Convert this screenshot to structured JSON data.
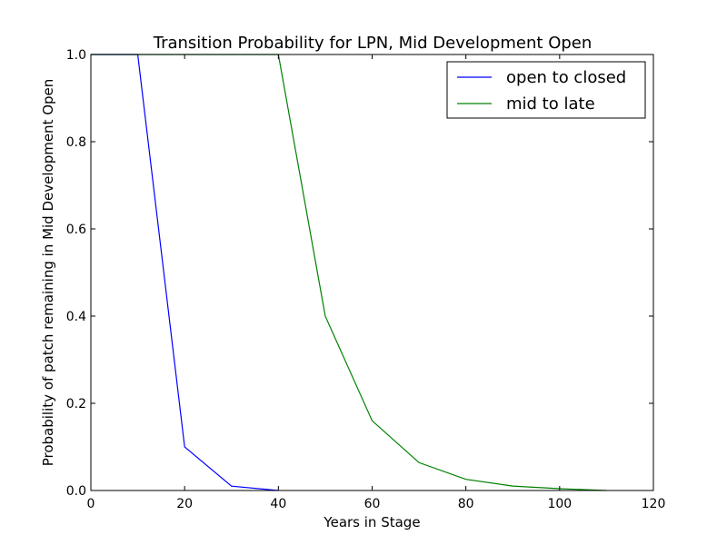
{
  "chart_data": {
    "type": "line",
    "title": "Transition Probability for LPN, Mid Development Open",
    "xlabel": "Years in Stage",
    "ylabel": "Probability of patch remaining in Mid Development Open",
    "xlim": [
      0,
      120
    ],
    "ylim": [
      0.0,
      1.0
    ],
    "xticks": [
      0,
      20,
      40,
      60,
      80,
      100,
      120
    ],
    "yticks": [
      0.0,
      0.2,
      0.4,
      0.6,
      0.8,
      1.0
    ],
    "xtick_labels": [
      "0",
      "20",
      "40",
      "60",
      "80",
      "100",
      "120"
    ],
    "ytick_labels": [
      "0.0",
      "0.2",
      "0.4",
      "0.6",
      "0.8",
      "1.0"
    ],
    "grid": false,
    "legend_position": "top-right",
    "series": [
      {
        "name": "open to closed",
        "color": "#0000ff",
        "x": [
          0,
          10,
          20,
          30,
          40
        ],
        "y": [
          1.0,
          1.0,
          0.1,
          0.01,
          0.0
        ]
      },
      {
        "name": "mid to late",
        "color": "#008000",
        "x": [
          0,
          40,
          50,
          60,
          70,
          80,
          90,
          100,
          110
        ],
        "y": [
          1.0,
          1.0,
          0.4,
          0.16,
          0.064,
          0.0256,
          0.0102,
          0.0041,
          0.0
        ]
      }
    ]
  }
}
